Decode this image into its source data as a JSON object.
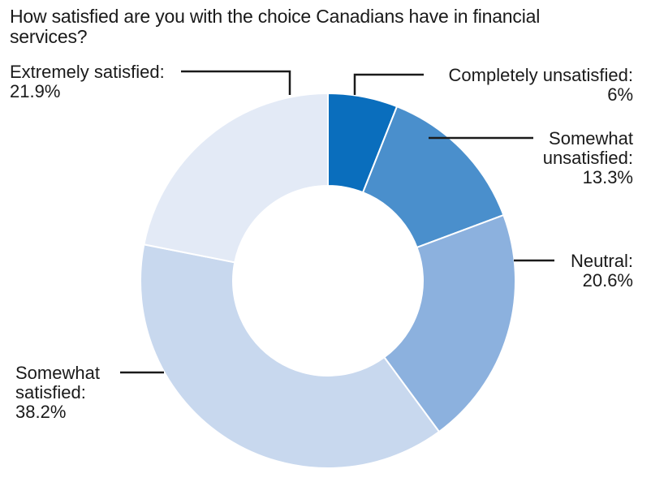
{
  "chart_data": {
    "type": "pie",
    "variant": "donut",
    "title": "How satisfied are you with the choice Canadians have in financial services?",
    "categories": [
      "Completely unsatisfied",
      "Somewhat unsatisfied",
      "Neutral",
      "Somewhat satisfied",
      "Extremely satisfied"
    ],
    "values": [
      6,
      13.3,
      20.6,
      38.2,
      21.9
    ],
    "unit": "%",
    "colors": [
      "#0a6ebd",
      "#4a8fcc",
      "#8cb1de",
      "#c8d8ee",
      "#e3eaf6"
    ],
    "labels": [
      {
        "lines": [
          "Completely unsatisfied:",
          "6%"
        ]
      },
      {
        "lines": [
          "Somewhat",
          "unsatisfied:",
          "13.3%"
        ]
      },
      {
        "lines": [
          "Neutral:",
          "20.6%"
        ]
      },
      {
        "lines": [
          "Somewhat",
          "satisfied:",
          "38.2%"
        ]
      },
      {
        "lines": [
          "Extremely satisfied:",
          "21.9%"
        ]
      }
    ],
    "legend": "none",
    "grid": false
  }
}
